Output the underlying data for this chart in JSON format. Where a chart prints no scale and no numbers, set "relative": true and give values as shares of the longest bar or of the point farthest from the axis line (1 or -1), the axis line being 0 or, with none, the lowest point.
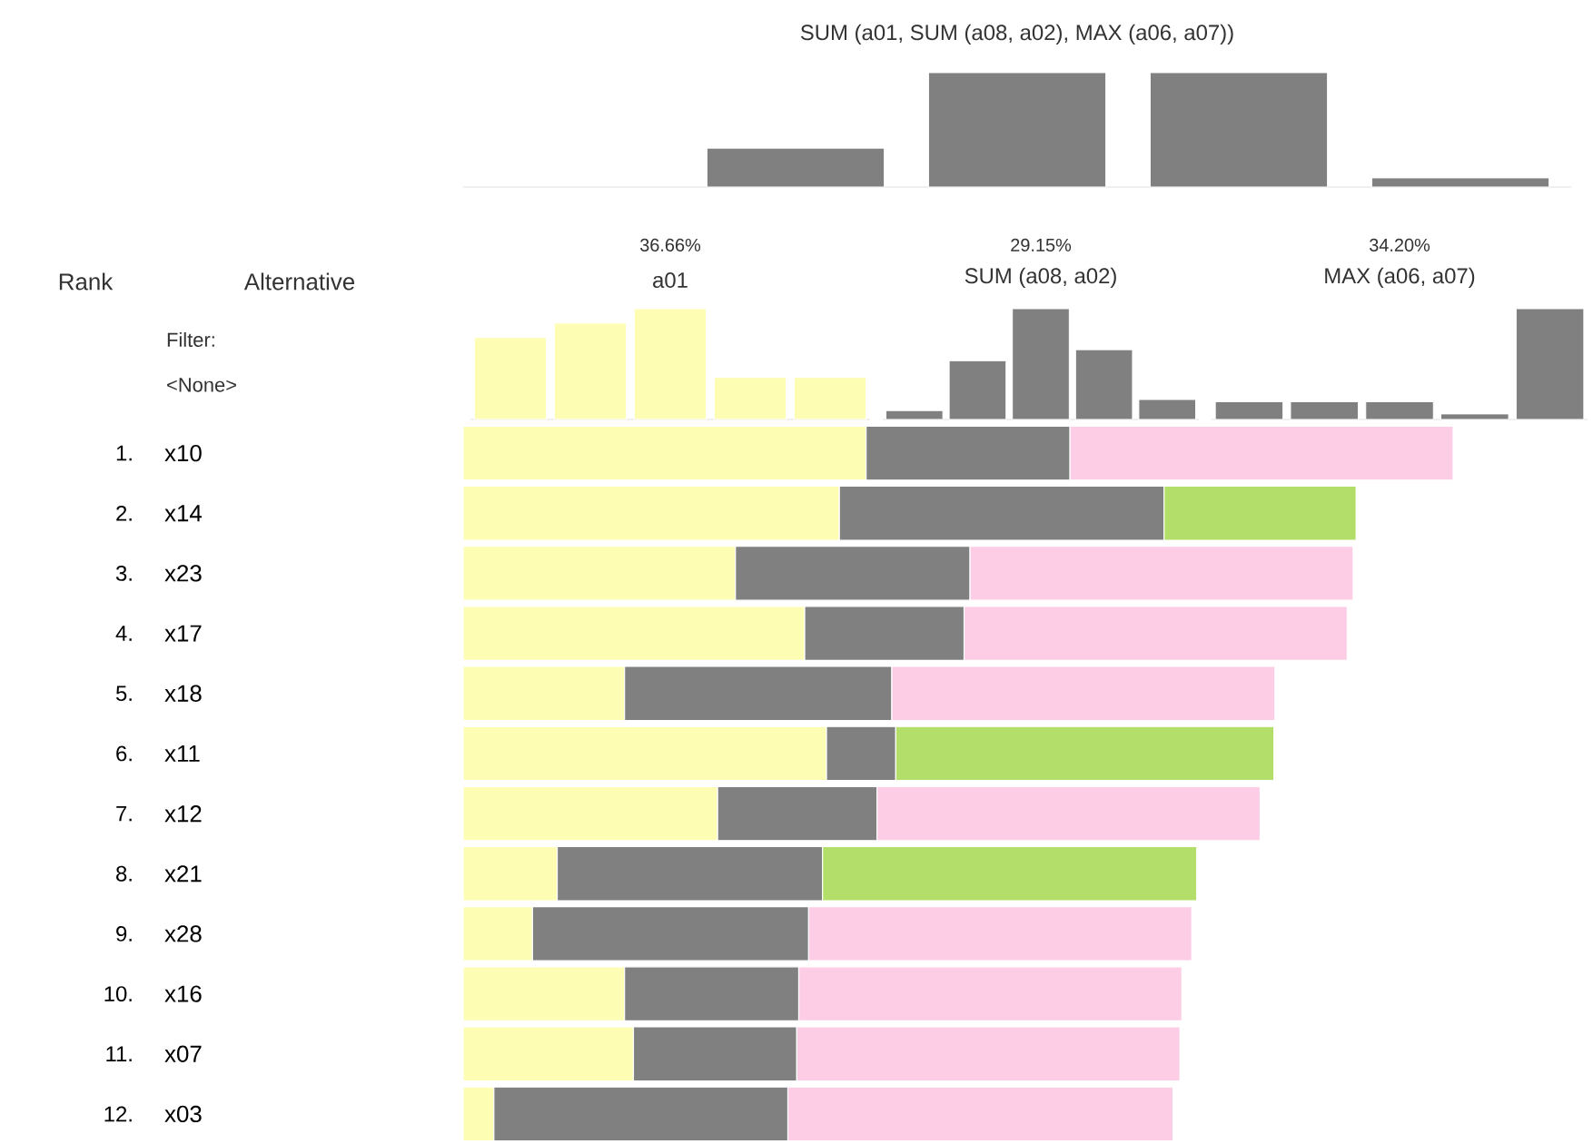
{
  "chart_data": [
    {
      "type": "bar",
      "title": "SUM (a01, SUM (a08, a02), MAX (a06, a07))",
      "categories": [
        null,
        null,
        null,
        null
      ],
      "values": [
        0.34,
        1,
        1,
        0.08
      ],
      "color": "#808080",
      "relative": true
    },
    {
      "type": "bar",
      "title": "a01",
      "subtitle": "36.66%",
      "categories": [
        null,
        null,
        null,
        null,
        null
      ],
      "values": [
        0.74,
        0.87,
        1,
        0.38,
        0.38
      ],
      "color": "#fdfdb4",
      "relative": true
    },
    {
      "type": "bar",
      "title": "SUM (a08, a02)",
      "subtitle": "29.15%",
      "categories": [
        null,
        null,
        null,
        null,
        null
      ],
      "values": [
        0.08,
        0.53,
        1,
        0.63,
        0.18
      ],
      "color": "#808080",
      "relative": true
    },
    {
      "type": "bar",
      "title": "MAX (a06, a07)",
      "subtitle": "34.20%",
      "categories": [
        null,
        null,
        null,
        null,
        null
      ],
      "values": [
        0.16,
        0.16,
        0.16,
        0.05,
        1
      ],
      "color": "#808080",
      "relative": true
    },
    {
      "type": "bar",
      "orientation": "horizontal",
      "stacked": true,
      "relative": true,
      "categories": [
        "x10",
        "x14",
        "x23",
        "x17",
        "x18",
        "x11",
        "x12",
        "x21",
        "x28",
        "x16",
        "x07",
        "x03"
      ],
      "series": [
        {
          "color": "#fdfdb4",
          "values": [
            0.407,
            0.38,
            0.275,
            0.345,
            0.163,
            0.367,
            0.257,
            0.095,
            0.07,
            0.163,
            0.172,
            0.031
          ]
        },
        {
          "color": "#808080",
          "values": [
            0.206,
            0.328,
            0.237,
            0.161,
            0.27,
            0.07,
            0.161,
            0.268,
            0.279,
            0.176,
            0.165,
            0.297
          ]
        },
        {
          "colors": [
            "#fccde5",
            "#b3de69",
            "#fccde5",
            "#fccde5",
            "#fccde5",
            "#b3de69",
            "#fccde5",
            "#b3de69",
            "#fccde5",
            "#fccde5",
            "#fccde5",
            "#fccde5"
          ],
          "values": [
            0.387,
            0.194,
            0.387,
            0.387,
            0.387,
            0.382,
            0.387,
            0.378,
            0.387,
            0.387,
            0.387,
            0.389
          ]
        }
      ],
      "annotations": [
        "Rank",
        "Alternative",
        "Filter:",
        "<None>",
        "1.",
        "2.",
        "3.",
        "4.",
        "5.",
        "6.",
        "7.",
        "8.",
        "9.",
        "10.",
        "11.",
        "12."
      ]
    }
  ]
}
